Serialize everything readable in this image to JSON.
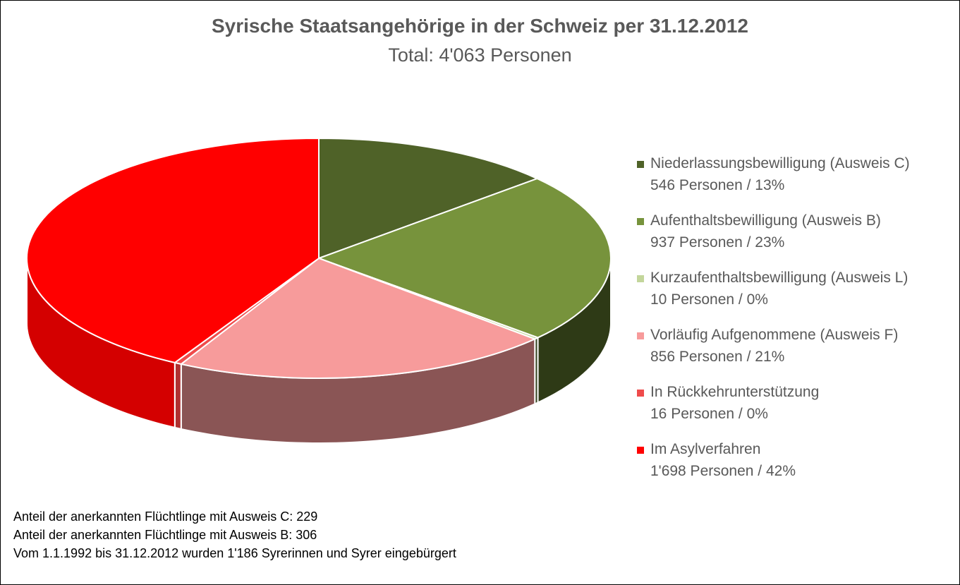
{
  "chart_data": {
    "type": "pie",
    "title": "Syrische Staatsangehörige in der Schweiz per 31.12.2012",
    "subtitle": "Total: 4'063 Personen",
    "legend_position": "right",
    "slices": [
      {
        "label": "Niederlassungsbewilligung (Ausweis C)",
        "value": 546,
        "value_text": "546 Personen / 13%",
        "color": "#4f6228",
        "side_color": "#2e3a16"
      },
      {
        "label": "Aufenthaltsbewilligung (Ausweis B)",
        "value": 937,
        "value_text": "937 Personen / 23%",
        "color": "#77933c",
        "side_color": "#2e3a16"
      },
      {
        "label": "Kurzaufenthaltsbewilligung (Ausweis L)",
        "value": 10,
        "value_text": "10 Personen / 0%",
        "color": "#c3d69b",
        "side_color": "#3c4a28"
      },
      {
        "label": "Vorläufig Aufgenommene (Ausweis F)",
        "value": 856,
        "value_text": "856 Personen / 21%",
        "color": "#f79b9b",
        "side_color": "#8a5555"
      },
      {
        "label": "In Rückkehrunterstützung",
        "value": 16,
        "value_text": "16 Personen / 0%",
        "color": "#ef4b4b",
        "side_color": "#b03030"
      },
      {
        "label": "Im Asylverfahren",
        "value": 1698,
        "value_text": "1'698 Personen / 42%",
        "color": "#ff0000",
        "side_color": "#d40000"
      }
    ],
    "notes": [
      "Anteil der anerkannten Flüchtlinge mit Ausweis C: 229",
      "Anteil der anerkannten Flüchtlinge mit Ausweis B: 306",
      "Vom 1.1.1992 bis 31.12.2012 wurden 1'186 Syrerinnen und Syrer eingebürgert"
    ]
  }
}
